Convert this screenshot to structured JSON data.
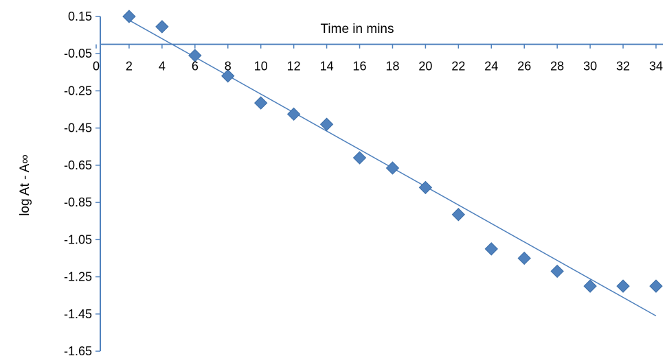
{
  "chart_data": {
    "type": "scatter",
    "title": "",
    "xlabel": "Time  in mins",
    "ylabel": "log At - A∞",
    "xlim": [
      0,
      34
    ],
    "ylim": [
      -1.65,
      0.15
    ],
    "x_axis_crossing_y": 0.0,
    "x_ticks": [
      0,
      2,
      4,
      6,
      8,
      10,
      12,
      14,
      16,
      18,
      20,
      22,
      24,
      26,
      28,
      30,
      32,
      34
    ],
    "y_ticks": [
      0.15,
      -0.05,
      -0.25,
      -0.45,
      -0.65,
      -0.85,
      -1.05,
      -1.25,
      -1.45,
      -1.65
    ],
    "x_tick_labels": [
      "0",
      "2",
      "4",
      "6",
      "8",
      "10",
      "12",
      "14",
      "16",
      "18",
      "20",
      "22",
      "24",
      "26",
      "28",
      "30",
      "32",
      "34"
    ],
    "y_tick_labels": [
      "0.15",
      "-0.05",
      "-0.25",
      "-0.45",
      "-0.65",
      "-0.85",
      "-1.05",
      "-1.25",
      "-1.45",
      "-1.65"
    ],
    "grid": false,
    "legend": "none",
    "series": [
      {
        "x": [
          2,
          4,
          6,
          8,
          10,
          12,
          14,
          16,
          18,
          20,
          22,
          24,
          26,
          28,
          30,
          32,
          34
        ],
        "y": [
          0.15,
          0.095,
          -0.06,
          -0.17,
          -0.315,
          -0.375,
          -0.43,
          -0.61,
          -0.665,
          -0.77,
          -0.915,
          -1.1,
          -1.15,
          -1.22,
          -1.3,
          -1.3,
          -1.3
        ],
        "marker": "diamond",
        "color": "#4F81BD"
      }
    ],
    "trendline": {
      "type": "linear",
      "x_start": 2,
      "y_start": 0.13,
      "x_end": 34,
      "y_end": -1.46,
      "color": "#4F81BD"
    }
  }
}
